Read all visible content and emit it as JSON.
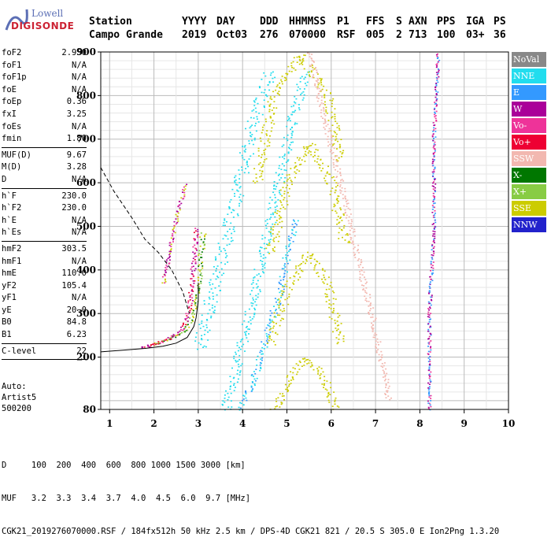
{
  "logo": {
    "line1": "Lowell",
    "line2": "DIGISONDE"
  },
  "header": {
    "labels": [
      "Station",
      "YYYY",
      "DAY",
      "DDD",
      "HHMMSS",
      "P1",
      "FFS",
      "S",
      "AXN",
      "PPS",
      "IGA",
      "PS"
    ],
    "values": [
      "Campo Grande",
      "2019",
      "Oct03",
      "276",
      "070000",
      "RSF",
      "005",
      "2",
      "713",
      "100",
      "03+",
      "36"
    ]
  },
  "params_group1": [
    {
      "name": "foF2",
      "value": "2.950"
    },
    {
      "name": "foF1",
      "value": "N/A"
    },
    {
      "name": "foF1p",
      "value": "N/A"
    },
    {
      "name": "foE",
      "value": "N/A"
    },
    {
      "name": "foEp",
      "value": "0.36"
    },
    {
      "name": "fxI",
      "value": "3.25"
    },
    {
      "name": "foEs",
      "value": "N/A"
    },
    {
      "name": "fmin",
      "value": "1.80"
    }
  ],
  "params_group2": [
    {
      "name": "MUF(D)",
      "value": "9.67"
    },
    {
      "name": "M(D)",
      "value": "3.28"
    },
    {
      "name": "D",
      "value": "N/A"
    }
  ],
  "params_group3": [
    {
      "name": "h`F",
      "value": "230.0"
    },
    {
      "name": "h`F2",
      "value": "230.0"
    },
    {
      "name": "h`E",
      "value": "N/A"
    },
    {
      "name": "h`Es",
      "value": "N/A"
    }
  ],
  "params_group4": [
    {
      "name": "hmF2",
      "value": "303.5"
    },
    {
      "name": "hmF1",
      "value": "N/A"
    },
    {
      "name": "hmE",
      "value": "110.0"
    },
    {
      "name": "yF2",
      "value": "105.4"
    },
    {
      "name": "yF1",
      "value": "N/A"
    },
    {
      "name": "yE",
      "value": "20.0"
    },
    {
      "name": "B0",
      "value": "84.8"
    },
    {
      "name": "B1",
      "value": "6.23"
    }
  ],
  "params_group5": [
    {
      "name": "C-level",
      "value": "22"
    }
  ],
  "autoscale": {
    "line1": "Auto:",
    "line2": "Artist5",
    "line3": "500200"
  },
  "legend": [
    {
      "label": "NoVal",
      "color": "#888888"
    },
    {
      "label": "NNE",
      "color": "#22ddee"
    },
    {
      "label": "E",
      "color": "#3399ff"
    },
    {
      "label": "W",
      "color": "#aa0099"
    },
    {
      "label": "Vo-",
      "color": "#ee3399"
    },
    {
      "label": "Vo+",
      "color": "#ee0033"
    },
    {
      "label": "SSW",
      "color": "#f2b8b0"
    },
    {
      "label": "X-",
      "color": "#007700"
    },
    {
      "label": "X+",
      "color": "#88cc44"
    },
    {
      "label": "SSE",
      "color": "#cccc00"
    },
    {
      "label": "NNW",
      "color": "#2222cc"
    }
  ],
  "footer": {
    "line1": "D     100  200  400  600  800 1000 1500 3000 [km]",
    "line2": "MUF   3.2  3.3  3.4  3.7  4.0  4.5  6.0  9.7 [MHz]",
    "line3": "CGK21_2019276070000.RSF / 184fx512h 50 kHz 2.5 km / DPS-4D CGK21 821 / 20.5 S 305.0 E Ion2Png 1.3.20"
  },
  "chart_data": {
    "type": "scatter",
    "title": "",
    "xlabel": "",
    "ylabel": "",
    "xlim": [
      0.8,
      10
    ],
    "ylim": [
      80,
      900
    ],
    "xticks": [
      "1",
      "2",
      "3",
      "4",
      "5",
      "6",
      "7",
      "8",
      "9",
      "10"
    ],
    "yticks": [
      "80",
      "200",
      "300",
      "400",
      "500",
      "600",
      "700",
      "800",
      "900"
    ],
    "grid": true,
    "traces": [
      {
        "name": "x-trace F2",
        "points": [
          [
            1.9,
            228
          ],
          [
            2.2,
            238
          ],
          [
            2.5,
            250
          ],
          [
            2.7,
            265
          ],
          [
            2.85,
            290
          ],
          [
            2.95,
            330
          ],
          [
            3.0,
            380
          ],
          [
            3.05,
            440
          ],
          [
            3.1,
            490
          ]
        ]
      },
      {
        "name": "o-trace F2",
        "points": [
          [
            1.7,
            222
          ],
          [
            2.0,
            230
          ],
          [
            2.3,
            242
          ],
          [
            2.55,
            258
          ],
          [
            2.7,
            280
          ],
          [
            2.8,
            320
          ],
          [
            2.85,
            380
          ],
          [
            2.9,
            440
          ],
          [
            2.95,
            500
          ]
        ]
      },
      {
        "name": "low-frequency echo",
        "points": [
          [
            2.2,
            370
          ],
          [
            2.3,
            420
          ],
          [
            2.4,
            470
          ],
          [
            2.5,
            520
          ],
          [
            2.6,
            560
          ],
          [
            2.7,
            600
          ]
        ]
      },
      {
        "name": "multihop band 1",
        "points": [
          [
            3.0,
            220
          ],
          [
            3.2,
            300
          ],
          [
            3.5,
            420
          ],
          [
            3.8,
            550
          ],
          [
            4.0,
            640
          ],
          [
            4.3,
            760
          ],
          [
            4.6,
            860
          ]
        ]
      },
      {
        "name": "multihop band 2",
        "points": [
          [
            3.6,
            80
          ],
          [
            3.9,
            200
          ],
          [
            4.2,
            320
          ],
          [
            4.5,
            460
          ],
          [
            4.8,
            600
          ],
          [
            5.1,
            740
          ],
          [
            5.4,
            860
          ]
        ]
      },
      {
        "name": "multihop band 3",
        "points": [
          [
            3.9,
            80
          ],
          [
            4.2,
            140
          ],
          [
            4.5,
            240
          ],
          [
            4.8,
            340
          ],
          [
            5.0,
            440
          ],
          [
            5.2,
            520
          ]
        ]
      },
      {
        "name": "SSE arc 900",
        "points": [
          [
            4.3,
            600
          ],
          [
            4.7,
            800
          ],
          [
            5.3,
            895
          ],
          [
            5.9,
            800
          ],
          [
            6.2,
            650
          ]
        ]
      },
      {
        "name": "SSE arc 700",
        "points": [
          [
            4.6,
            440
          ],
          [
            5.0,
            600
          ],
          [
            5.5,
            690
          ],
          [
            6.0,
            600
          ],
          [
            6.3,
            460
          ]
        ]
      },
      {
        "name": "SSE arc 450",
        "points": [
          [
            4.6,
            230
          ],
          [
            5.0,
            360
          ],
          [
            5.5,
            440
          ],
          [
            5.9,
            370
          ],
          [
            6.2,
            230
          ]
        ]
      },
      {
        "name": "SSE arc 200",
        "points": [
          [
            4.7,
            80
          ],
          [
            5.1,
            160
          ],
          [
            5.4,
            200
          ],
          [
            5.8,
            160
          ],
          [
            6.1,
            80
          ]
        ]
      },
      {
        "name": "SSW band",
        "points": [
          [
            5.5,
            900
          ],
          [
            5.9,
            720
          ],
          [
            6.3,
            560
          ],
          [
            6.6,
            420
          ],
          [
            6.9,
            300
          ],
          [
            7.1,
            200
          ],
          [
            7.3,
            100
          ]
        ]
      },
      {
        "name": "W band",
        "points": [
          [
            8.2,
            80
          ],
          [
            8.2,
            300
          ],
          [
            8.3,
            500
          ],
          [
            8.3,
            700
          ],
          [
            8.4,
            900
          ]
        ]
      }
    ],
    "dashed_curve": [
      [
        0.8,
        635
      ],
      [
        1.1,
        580
      ],
      [
        1.5,
        520
      ],
      [
        1.8,
        470
      ],
      [
        2.1,
        440
      ],
      [
        2.4,
        400
      ],
      [
        2.65,
        350
      ],
      [
        2.8,
        300
      ]
    ],
    "solid_profile": [
      [
        0.8,
        212
      ],
      [
        1.3,
        216
      ],
      [
        1.8,
        220
      ],
      [
        2.2,
        225
      ],
      [
        2.5,
        232
      ],
      [
        2.75,
        245
      ],
      [
        2.9,
        270
      ],
      [
        2.95,
        290
      ],
      [
        3.0,
        330
      ],
      [
        3.0,
        370
      ]
    ]
  }
}
